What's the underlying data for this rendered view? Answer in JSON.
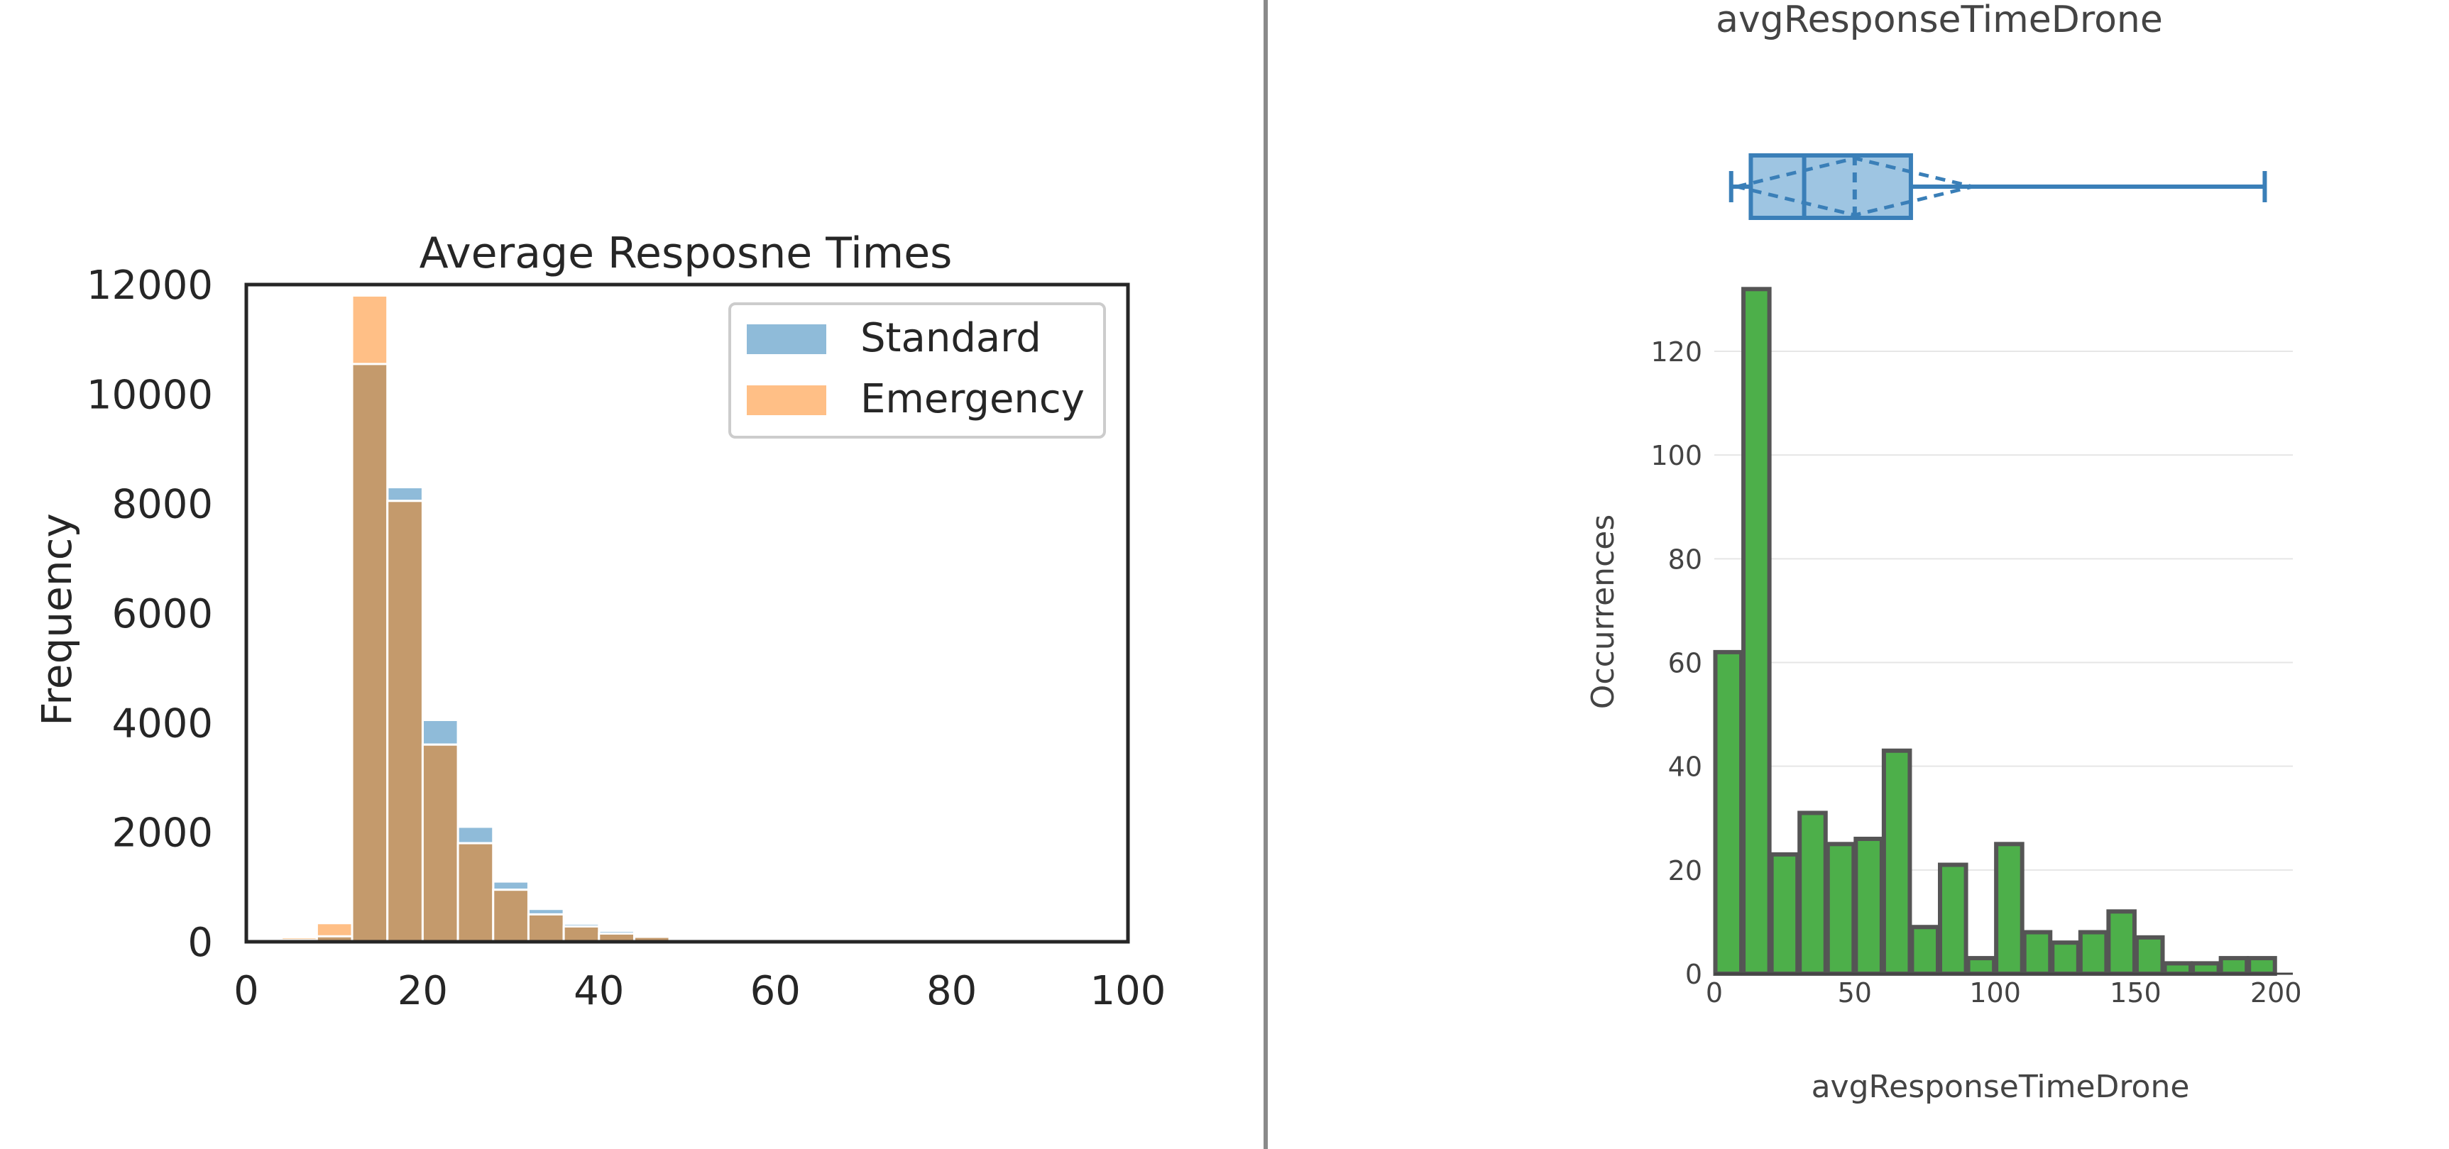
{
  "chart_data": [
    {
      "type": "bar",
      "subtype": "overlaid-histogram",
      "title": "Average Resposne Times",
      "xlabel": "",
      "ylabel": "Frequency",
      "xlim": [
        0,
        100
      ],
      "ylim": [
        0,
        12000
      ],
      "xticks": [
        0,
        20,
        40,
        60,
        80,
        100
      ],
      "yticks": [
        0,
        2000,
        4000,
        6000,
        8000,
        10000,
        12000
      ],
      "grid": false,
      "legend_position": "top-right",
      "bin_edges": [
        4,
        8,
        12,
        16,
        20,
        24,
        28,
        32,
        36,
        40,
        44,
        48,
        52,
        56,
        60
      ],
      "series": [
        {
          "name": "Standard",
          "color": "#1f77b4",
          "values": [
            30,
            100,
            10550,
            8300,
            4050,
            2100,
            1100,
            600,
            330,
            200,
            120,
            70,
            40,
            20
          ]
        },
        {
          "name": "Emergency",
          "color": "#ff7f0e",
          "values": [
            80,
            340,
            11800,
            8050,
            3600,
            1800,
            950,
            500,
            280,
            150,
            90,
            50,
            30,
            15
          ]
        }
      ],
      "overlap_color": "#c49a6c"
    },
    {
      "type": "bar",
      "subtype": "histogram-with-boxplot",
      "title": "avgResponseTimeDrone",
      "xlabel": "avgResponseTimeDrone",
      "ylabel": "Occurrences",
      "xlim": [
        0,
        206
      ],
      "ylim": [
        0,
        133
      ],
      "xticks": [
        0,
        50,
        100,
        150,
        200
      ],
      "yticks": [
        0,
        20,
        40,
        60,
        80,
        100,
        120
      ],
      "grid": true,
      "bar_color": "#4daf4a",
      "bar_edge_color": "#555555",
      "bin_width": 10,
      "bin_starts": [
        0,
        10,
        20,
        30,
        40,
        50,
        60,
        70,
        80,
        90,
        100,
        110,
        120,
        130,
        140,
        150,
        160,
        170,
        180,
        190
      ],
      "values": [
        62,
        132,
        23,
        31,
        25,
        26,
        43,
        9,
        21,
        3,
        25,
        8,
        6,
        8,
        12,
        7,
        2,
        2,
        3,
        3
      ],
      "boxplot": {
        "color": "#3a7fb8",
        "fill": "#9ec5e2",
        "whisker_low": 6,
        "q1": 13,
        "median": 32,
        "mean": 50,
        "q3": 70,
        "whisker_high": 196,
        "notch_low": 8,
        "notch_high": 92
      }
    }
  ]
}
